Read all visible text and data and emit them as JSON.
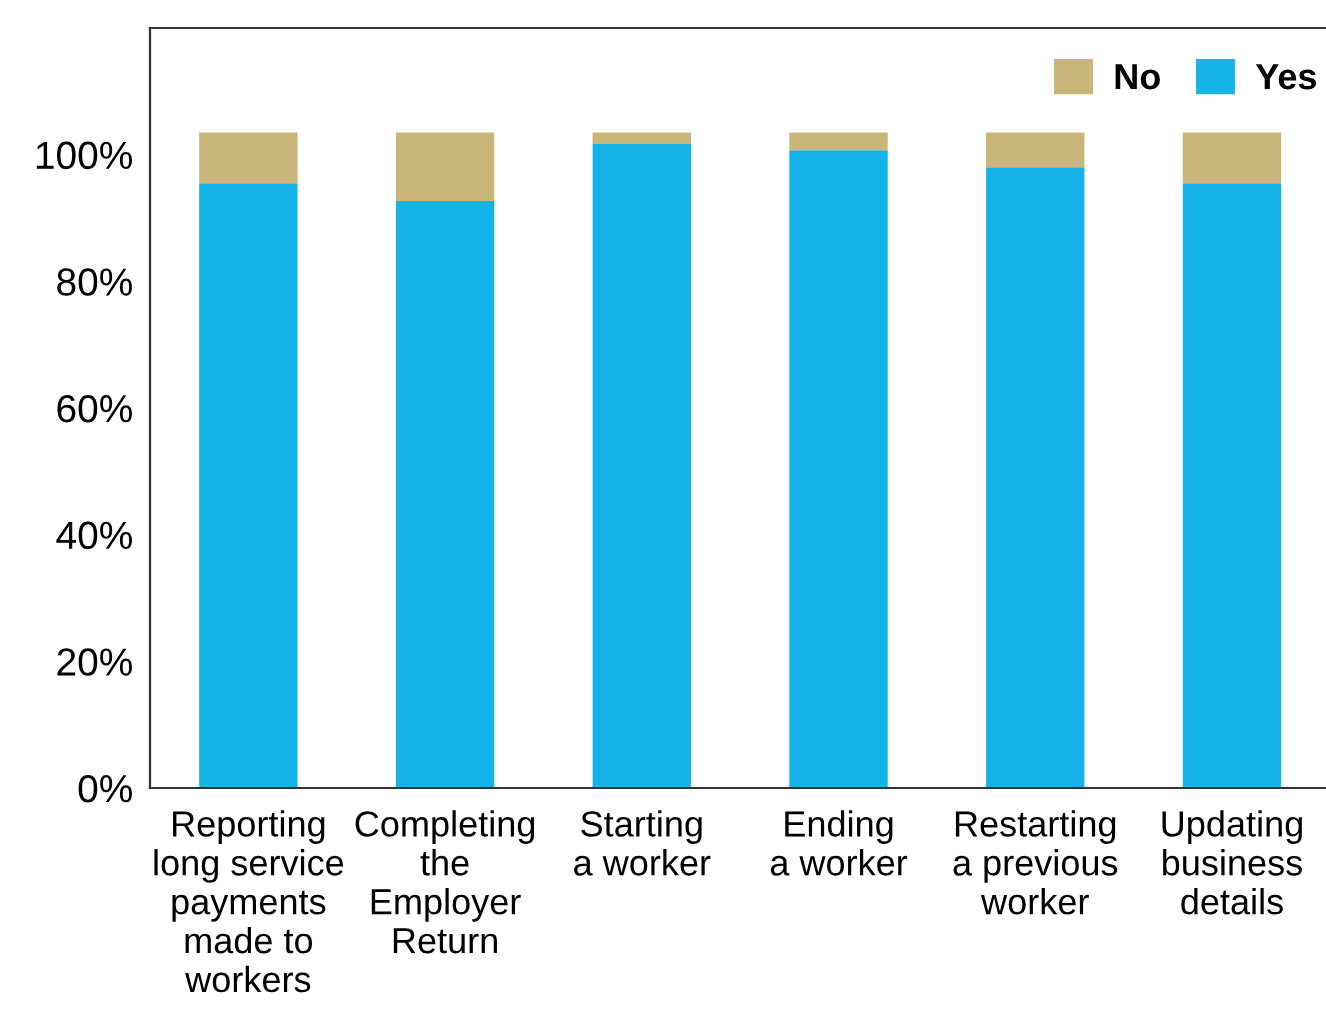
{
  "chart_data": {
    "type": "bar",
    "stacked": true,
    "categories": [
      "Reporting\nlong service\npayments\nmade to\nworkers",
      "Completing\nthe\nEmployer\nReturn",
      "Starting\na worker",
      "Ending\na worker",
      "Restarting\na previous\nworker",
      "Updating\nbusiness\ndetails"
    ],
    "series": [
      {
        "name": "Yes",
        "color": "#14b4e8",
        "values": [
          95.5,
          92.7,
          101.7,
          100.7,
          98,
          95.5
        ]
      },
      {
        "name": "No",
        "color": "#c9b577",
        "values": [
          8,
          10.8,
          1.8,
          2.8,
          5.5,
          8
        ]
      }
    ],
    "ylim": [
      0,
      120
    ],
    "yticks": [
      {
        "value": 0,
        "label": "0%"
      },
      {
        "value": 20,
        "label": "20%"
      },
      {
        "value": 40,
        "label": "40%"
      },
      {
        "value": 60,
        "label": "60%"
      },
      {
        "value": 80,
        "label": "80%"
      },
      {
        "value": 100,
        "label": "100%"
      }
    ],
    "legend": "top right",
    "grid": false
  }
}
